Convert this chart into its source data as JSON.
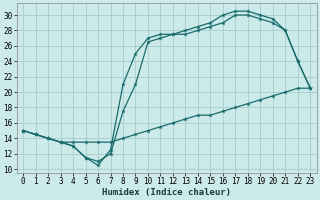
{
  "xlabel": "Humidex (Indice chaleur)",
  "bg_color": "#cceaea",
  "grid_color": "#aad0d0",
  "line_color": "#1a6b6b",
  "xlim": [
    -0.5,
    23.5
  ],
  "ylim": [
    9.5,
    31.5
  ],
  "xticks": [
    0,
    1,
    2,
    3,
    4,
    5,
    6,
    7,
    8,
    9,
    10,
    11,
    12,
    13,
    14,
    15,
    16,
    17,
    18,
    19,
    20,
    21,
    22,
    23
  ],
  "yticks": [
    10,
    12,
    14,
    16,
    18,
    20,
    22,
    24,
    26,
    28,
    30
  ],
  "line1_x": [
    0,
    1,
    2,
    3,
    4,
    5,
    6,
    7,
    8,
    9,
    10,
    11,
    12,
    13,
    14,
    15,
    16,
    17,
    18,
    19,
    20,
    21,
    22,
    23
  ],
  "line1_y": [
    15.0,
    14.5,
    14.0,
    13.5,
    13.5,
    13.5,
    13.5,
    13.5,
    14.0,
    14.5,
    15.0,
    15.5,
    16.0,
    16.5,
    17.0,
    17.0,
    17.5,
    18.0,
    18.5,
    19.0,
    19.5,
    20.0,
    20.5,
    20.5
  ],
  "line2_x": [
    0,
    1,
    2,
    3,
    4,
    5,
    6,
    7,
    8,
    9,
    10,
    11,
    12,
    13,
    14,
    15,
    16,
    17,
    18,
    19,
    20,
    21,
    22,
    23
  ],
  "line2_y": [
    15.0,
    14.5,
    14.0,
    13.5,
    13.0,
    11.5,
    11.0,
    12.0,
    17.5,
    21.0,
    26.5,
    27.0,
    27.5,
    27.5,
    28.0,
    28.5,
    29.0,
    30.0,
    30.0,
    29.5,
    29.0,
    28.0,
    24.0,
    20.5
  ],
  "line3_x": [
    0,
    1,
    2,
    3,
    4,
    5,
    6,
    7,
    8,
    9,
    10,
    11,
    12,
    13,
    14,
    15,
    16,
    17,
    18,
    19,
    20,
    21,
    22,
    23
  ],
  "line3_y": [
    15.0,
    14.5,
    14.0,
    13.5,
    13.0,
    11.5,
    10.5,
    12.5,
    21.0,
    25.0,
    27.0,
    27.5,
    27.5,
    28.0,
    28.5,
    29.0,
    30.0,
    30.5,
    30.5,
    30.0,
    29.5,
    28.0,
    24.0,
    20.5
  ]
}
